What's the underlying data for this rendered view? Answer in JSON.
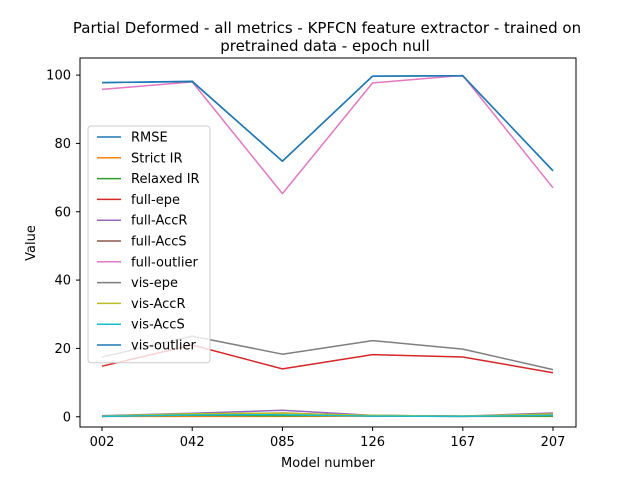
{
  "chart_data": {
    "type": "line",
    "title_line1": "Partial Deformed - all metrics - KPFCN feature extractor -  trained on",
    "title_line2": "pretrained data -  epoch null",
    "xlabel": "Model number",
    "ylabel": "Value",
    "categories": [
      "002",
      "042",
      "085",
      "126",
      "167",
      "207"
    ],
    "yticks": [
      0,
      20,
      40,
      60,
      80,
      100
    ],
    "ylim": [
      -3,
      105
    ],
    "grid": false,
    "legend_position": "center-left",
    "series": [
      {
        "name": "RMSE",
        "color": "#1f77b4",
        "values": [
          97.8,
          98.2,
          74.8,
          99.7,
          99.8,
          72.0
        ]
      },
      {
        "name": "Strict IR",
        "color": "#ff7f0e",
        "values": [
          0.1,
          0.1,
          0.1,
          0.2,
          0.1,
          0.1
        ]
      },
      {
        "name": "Relaxed IR",
        "color": "#2ca02c",
        "values": [
          0.2,
          0.4,
          0.3,
          0.4,
          0.2,
          0.2
        ]
      },
      {
        "name": "full-epe",
        "color": "#d62728",
        "values": [
          14.8,
          21.0,
          14.0,
          18.2,
          17.5,
          12.9
        ]
      },
      {
        "name": "full-AccR",
        "color": "#9467bd",
        "values": [
          0.3,
          1.0,
          1.9,
          0.4,
          0.2,
          1.1
        ]
      },
      {
        "name": "full-AccS",
        "color": "#8c564b",
        "values": [
          0.1,
          0.6,
          1.1,
          0.2,
          0.1,
          0.5
        ]
      },
      {
        "name": "full-outlier",
        "color": "#e377c2",
        "values": [
          95.8,
          98.0,
          65.3,
          97.7,
          99.9,
          67.0
        ]
      },
      {
        "name": "vis-epe",
        "color": "#7f7f7f",
        "values": [
          17.5,
          23.6,
          18.3,
          22.3,
          19.8,
          13.8
        ]
      },
      {
        "name": "vis-AccR",
        "color": "#bcbd22",
        "values": [
          0.2,
          0.9,
          1.0,
          0.4,
          0.2,
          0.8
        ]
      },
      {
        "name": "vis-AccS",
        "color": "#17becf",
        "values": [
          0.1,
          0.5,
          0.6,
          0.2,
          0.1,
          0.4
        ]
      },
      {
        "name": "vis-outlier",
        "color": "#1f77b4",
        "values": [
          97.8,
          98.1,
          74.8,
          99.7,
          99.8,
          72.0
        ]
      }
    ]
  }
}
